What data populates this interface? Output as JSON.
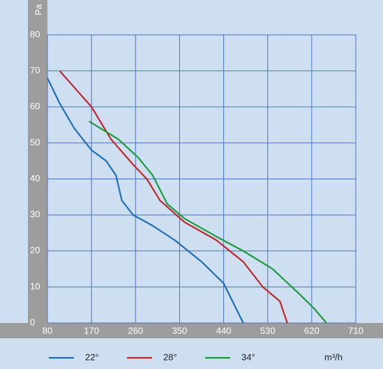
{
  "chart_data": {
    "type": "line",
    "x_label": "m³/h",
    "y_label": "Pa",
    "xlim": [
      80,
      710
    ],
    "ylim": [
      0,
      80
    ],
    "xticks": [
      80,
      170,
      260,
      350,
      440,
      530,
      620,
      710
    ],
    "yticks": [
      0,
      10,
      20,
      30,
      40,
      50,
      60,
      70,
      80
    ],
    "grid": true,
    "series": [
      {
        "name": "22°",
        "color": "#1f6fb5",
        "x": [
          80,
          105,
          135,
          170,
          200,
          220,
          232,
          255,
          295,
          340,
          395,
          440,
          480
        ],
        "values": [
          68,
          61,
          54,
          48,
          45,
          41,
          34,
          30,
          27,
          23,
          17,
          11,
          0
        ]
      },
      {
        "name": "28°",
        "color": "#c0272d",
        "x": [
          105,
          170,
          210,
          255,
          283,
          310,
          360,
          425,
          480,
          520,
          555,
          570
        ],
        "values": [
          70,
          60,
          51,
          44,
          40,
          34,
          28,
          23,
          17,
          10,
          6,
          0
        ]
      },
      {
        "name": "34°",
        "color": "#1a9b3c",
        "x": [
          165,
          225,
          265,
          295,
          325,
          360,
          425,
          480,
          540,
          595,
          625,
          650
        ],
        "values": [
          56,
          51,
          46,
          41,
          33,
          29,
          24,
          20,
          15,
          8,
          4,
          0
        ]
      }
    ]
  }
}
